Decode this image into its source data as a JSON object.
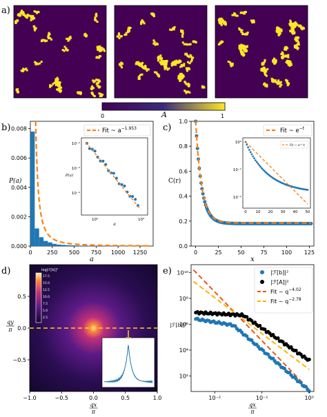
{
  "panel_labels": {
    "a": "a)",
    "b": "b)",
    "c": "c)",
    "d": "d)",
    "e": "e)"
  },
  "colorbar": {
    "symbol": "A",
    "min": "0",
    "max": "1",
    "colors": [
      "#440154",
      "#3b2b7d",
      "#fde725"
    ]
  },
  "colors": {
    "blue": "#1f77b4",
    "orange": "#ff7f0e",
    "dark_orange": "#e8551d",
    "black": "#000000",
    "gold": "#ffb300"
  },
  "chart_data": [
    {
      "id": "b",
      "type": "bar",
      "xlabel": "a",
      "ylabel": "P(a)",
      "xlim": [
        0,
        1400
      ],
      "ylim": [
        0,
        0.0085
      ],
      "xticks": [
        "0",
        "250",
        "500",
        "750",
        "1000",
        "1250"
      ],
      "yticks": [
        "0.000",
        "0.002",
        "0.004",
        "0.006",
        "0.008"
      ],
      "bins_left": [
        0,
        50,
        100,
        150,
        200,
        250,
        300,
        350,
        400,
        450,
        500,
        550,
        600,
        650,
        700,
        750,
        800,
        850,
        900,
        950,
        1000,
        1050,
        1100,
        1150,
        1200,
        1250,
        1300,
        1350
      ],
      "hist_values": [
        0.0078,
        0.0012,
        0.0006,
        0.00035,
        0.00025,
        0.00015,
        0.0001,
        8e-05,
        6e-05,
        5e-05,
        4e-05,
        3e-05,
        3e-05,
        2e-05,
        2e-05,
        2e-05,
        1e-05,
        1e-05,
        1e-05,
        1e-05,
        1e-05,
        1e-05,
        1e-05,
        1e-05,
        1e-05,
        5e-06,
        5e-06,
        5e-06
      ],
      "fit_exponent": -1.953,
      "legend_prefix": "Fit ~ a",
      "legend_exponent": "−1.953",
      "inset": {
        "xlabel": "a",
        "ylabel": "P(a)",
        "yticks": [
          "10⁻²",
          "10⁻³",
          "10⁻⁴"
        ],
        "xticks": [
          "10²",
          "10³"
        ]
      }
    },
    {
      "id": "c",
      "type": "line",
      "xlabel": "x",
      "ylabel": "C(r)",
      "xlim": [
        -5,
        130
      ],
      "ylim": [
        0,
        1.0
      ],
      "xticks": [
        "0",
        "25",
        "50",
        "75",
        "100",
        "125"
      ],
      "yticks": [
        "0.0",
        "0.2",
        "0.4",
        "0.6",
        "0.8",
        "1.0"
      ],
      "legend_prefix": "Fit ~ e",
      "legend_exponent": "−t",
      "inset": {
        "xticks": [
          "0",
          "10",
          "20",
          "30",
          "40",
          "50"
        ],
        "yticks": [
          "10⁰",
          "10⁻¹",
          "10⁻²"
        ],
        "legend": "Fit ~ e^-t"
      }
    },
    {
      "id": "d",
      "type": "heatmap",
      "xlabel_top": "qx",
      "xlabel_bottom": "π",
      "ylabel_top": "qy",
      "ylabel_bottom": "π",
      "xticks": [
        "−1.0",
        "−0.5",
        "0.0",
        "0.5",
        "1.0"
      ],
      "yticks": [
        "0.5",
        "0.0",
        "−0.5"
      ],
      "colorbar_title": "log|ℱ[b]|²",
      "colorbar_ticks": [
        "17.5",
        "15.0",
        "12.5",
        "10.0",
        "7.5",
        "5.0",
        "2.5"
      ]
    },
    {
      "id": "e",
      "type": "scatter",
      "ylabel": "|ℱ[b]|²",
      "xlabel_top": "qx",
      "xlabel_bottom": "π",
      "xticks": [
        "10⁻²",
        "10⁻¹",
        "10⁰"
      ],
      "yticks": [
        "10¹⁰",
        "10⁸",
        "10⁶",
        "10⁴",
        "10²"
      ],
      "series": [
        {
          "name": "|ℱ[b]|²",
          "color": "#1f77b4"
        },
        {
          "name": "|ℱ[A]|²",
          "color": "#000000"
        }
      ],
      "fits": [
        {
          "name": "Fit ~ q",
          "exponent": "−4.02",
          "color": "#e8551d"
        },
        {
          "name": "Fit ~ q",
          "exponent": "−2.78",
          "color": "#ffb300"
        }
      ]
    }
  ]
}
